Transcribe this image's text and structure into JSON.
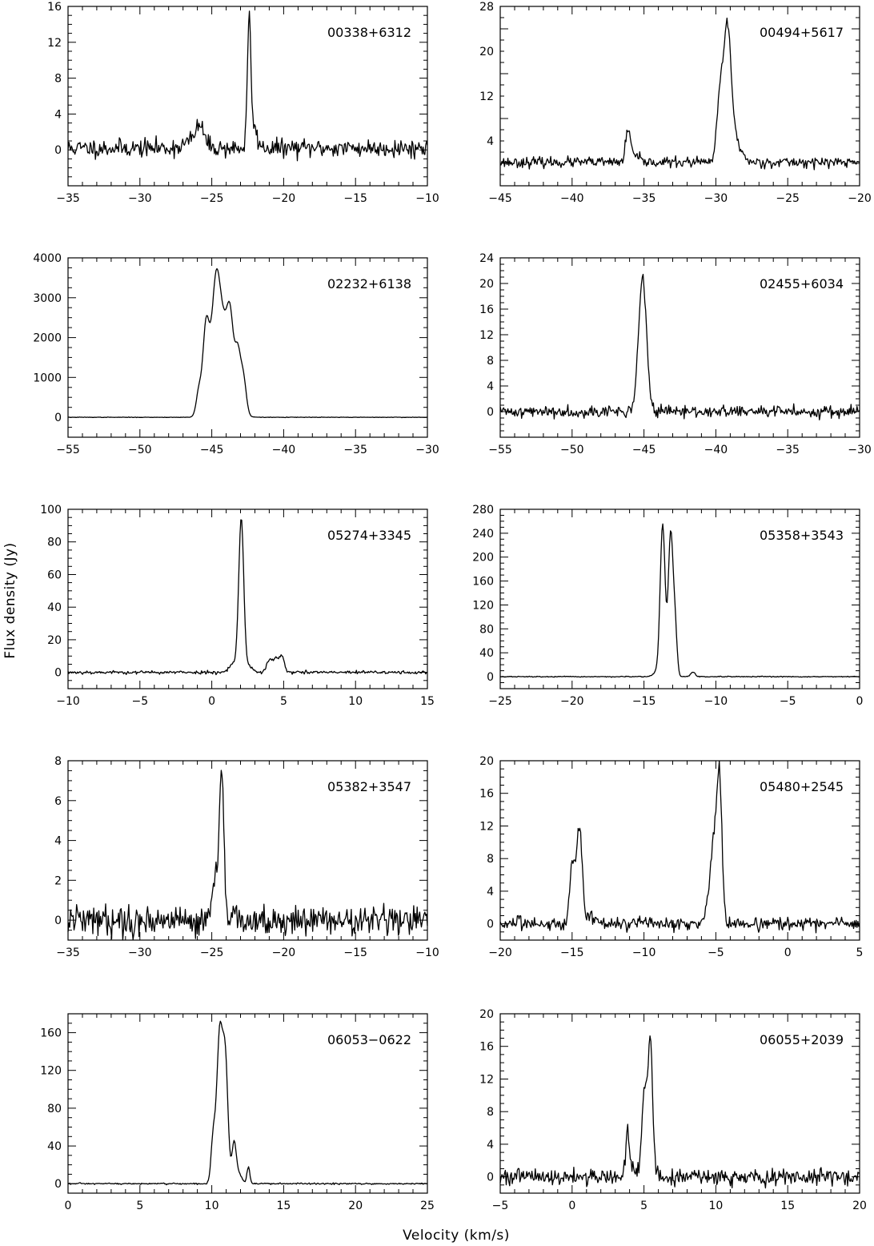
{
  "figure": {
    "xlabel": "Velocity (km/s)",
    "ylabel": "Flux density (Jy)"
  },
  "chart_data": [
    {
      "type": "line",
      "title": "00338+6312",
      "xlim": [
        -35,
        -10
      ],
      "ylim": [
        -4,
        16
      ],
      "xticks": [
        -35,
        -30,
        -25,
        -20,
        -15,
        -10
      ],
      "yticks": [
        0,
        4,
        8,
        12,
        16
      ],
      "noise": 0.5,
      "baseline": 0.2,
      "seed": 11,
      "peaks": [
        {
          "v": -22.4,
          "a": 13.6,
          "w": 0.12
        },
        {
          "v": -22.1,
          "a": 2.2,
          "w": 0.25
        },
        {
          "v": -25.8,
          "a": 1.8,
          "w": 0.25
        },
        {
          "v": -26.2,
          "a": 1.0,
          "w": 0.6
        }
      ]
    },
    {
      "type": "line",
      "title": "00494+5617",
      "xlim": [
        -45,
        -20
      ],
      "ylim": [
        -4,
        28
      ],
      "xticks": [
        -45,
        -40,
        -35,
        -30,
        -25,
        -20
      ],
      "yticks": [
        4,
        12,
        20,
        28
      ],
      "noise": 0.45,
      "baseline": 0.2,
      "seed": 23,
      "peaks": [
        {
          "v": -29.2,
          "a": 22.0,
          "w": 0.25
        },
        {
          "v": -29.7,
          "a": 11.5,
          "w": 0.22
        },
        {
          "v": -28.8,
          "a": 4.0,
          "w": 0.35
        },
        {
          "v": -28.3,
          "a": 1.2,
          "w": 0.3
        },
        {
          "v": -36.1,
          "a": 5.5,
          "w": 0.18
        },
        {
          "v": -35.6,
          "a": 1.0,
          "w": 0.25
        }
      ]
    },
    {
      "type": "line",
      "title": "02232+6138",
      "xlim": [
        -55,
        -30
      ],
      "ylim": [
        -500,
        4000
      ],
      "xticks": [
        -55,
        -50,
        -45,
        -40,
        -35,
        -30
      ],
      "yticks": [
        0,
        1000,
        2000,
        3000,
        4000
      ],
      "noise": 3,
      "baseline": 0,
      "seed": 37,
      "peaks": [
        {
          "v": -45.4,
          "a": 2100,
          "w": 0.22
        },
        {
          "v": -44.7,
          "a": 2900,
          "w": 0.3
        },
        {
          "v": -44.1,
          "a": 1300,
          "w": 0.3
        },
        {
          "v": -43.7,
          "a": 1700,
          "w": 0.22
        },
        {
          "v": -43.2,
          "a": 1400,
          "w": 0.2
        },
        {
          "v": -42.8,
          "a": 900,
          "w": 0.2
        },
        {
          "v": -45.9,
          "a": 600,
          "w": 0.18
        },
        {
          "v": -44.3,
          "a": 700,
          "w": 0.7
        }
      ]
    },
    {
      "type": "line",
      "title": "02455+6034",
      "xlim": [
        -55,
        -30
      ],
      "ylim": [
        -4,
        24
      ],
      "xticks": [
        -55,
        -50,
        -45,
        -40,
        -35,
        -30
      ],
      "yticks": [
        0,
        4,
        8,
        12,
        16,
        20,
        24
      ],
      "noise": 0.45,
      "baseline": 0,
      "seed": 41,
      "peaks": [
        {
          "v": -45.1,
          "a": 20.8,
          "w": 0.28
        }
      ]
    },
    {
      "type": "line",
      "title": "05274+3345",
      "xlim": [
        -10,
        15
      ],
      "ylim": [
        -10,
        100
      ],
      "xticks": [
        -10,
        -5,
        0,
        5,
        10,
        15
      ],
      "yticks": [
        0,
        20,
        40,
        60,
        80,
        100
      ],
      "noise": 0.5,
      "baseline": 0,
      "seed": 53,
      "peaks": [
        {
          "v": 2.05,
          "a": 91,
          "w": 0.17
        },
        {
          "v": 1.6,
          "a": 6,
          "w": 0.35
        },
        {
          "v": 2.5,
          "a": 4,
          "w": 0.3
        },
        {
          "v": 4.0,
          "a": 7,
          "w": 0.2
        },
        {
          "v": 4.5,
          "a": 8.5,
          "w": 0.22
        },
        {
          "v": 4.9,
          "a": 8.5,
          "w": 0.15
        }
      ]
    },
    {
      "type": "line",
      "title": "05358+3543",
      "xlim": [
        -25,
        0
      ],
      "ylim": [
        -20,
        280
      ],
      "xticks": [
        -25,
        -20,
        -15,
        -10,
        -5,
        0
      ],
      "yticks": [
        0,
        40,
        80,
        120,
        160,
        200,
        240,
        280
      ],
      "noise": 0.4,
      "baseline": 0,
      "seed": 67,
      "peaks": [
        {
          "v": -13.7,
          "a": 252,
          "w": 0.17
        },
        {
          "v": -13.15,
          "a": 235,
          "w": 0.16
        },
        {
          "v": -12.85,
          "a": 85,
          "w": 0.14
        },
        {
          "v": -11.6,
          "a": 8,
          "w": 0.15
        },
        {
          "v": -14.1,
          "a": 8,
          "w": 0.25
        }
      ]
    },
    {
      "type": "line",
      "title": "05382+3547",
      "xlim": [
        -35,
        -10
      ],
      "ylim": [
        -1,
        8
      ],
      "xticks": [
        -35,
        -30,
        -25,
        -20,
        -15,
        -10
      ],
      "yticks": [
        0,
        2,
        4,
        6,
        8
      ],
      "noise": 0.38,
      "baseline": 0,
      "seed": 79,
      "peaks": [
        {
          "v": -24.3,
          "a": 7.0,
          "w": 0.14
        },
        {
          "v": -24.7,
          "a": 1.8,
          "w": 0.18
        },
        {
          "v": -24.5,
          "a": 1.2,
          "w": 0.25
        }
      ]
    },
    {
      "type": "line",
      "title": "05480+2545",
      "xlim": [
        -20,
        5
      ],
      "ylim": [
        -2,
        20
      ],
      "xticks": [
        -20,
        -15,
        -10,
        -5,
        0,
        5
      ],
      "yticks": [
        0,
        4,
        8,
        12,
        16,
        20
      ],
      "noise": 0.4,
      "baseline": 0,
      "seed": 83,
      "peaks": [
        {
          "v": -14.5,
          "a": 12.0,
          "w": 0.2
        },
        {
          "v": -15.0,
          "a": 7.2,
          "w": 0.17
        },
        {
          "v": -13.7,
          "a": 1.2,
          "w": 0.25
        },
        {
          "v": -4.75,
          "a": 17.6,
          "w": 0.18
        },
        {
          "v": -5.15,
          "a": 9.0,
          "w": 0.2
        },
        {
          "v": -5.5,
          "a": 2.0,
          "w": 0.3
        }
      ]
    },
    {
      "type": "line",
      "title": "06053−0622",
      "xlim": [
        0,
        25
      ],
      "ylim": [
        -10,
        180
      ],
      "xticks": [
        0,
        5,
        10,
        15,
        20,
        25
      ],
      "yticks": [
        0,
        40,
        80,
        120,
        160
      ],
      "noise": 0.4,
      "baseline": 0,
      "seed": 97,
      "peaks": [
        {
          "v": 10.55,
          "a": 158,
          "w": 0.2
        },
        {
          "v": 10.95,
          "a": 125,
          "w": 0.18
        },
        {
          "v": 10.1,
          "a": 48,
          "w": 0.15
        },
        {
          "v": 11.55,
          "a": 43,
          "w": 0.15
        },
        {
          "v": 12.55,
          "a": 18,
          "w": 0.1
        },
        {
          "v": 11.9,
          "a": 10,
          "w": 0.2
        }
      ]
    },
    {
      "type": "line",
      "title": "06055+2039",
      "xlim": [
        -5,
        20
      ],
      "ylim": [
        -2,
        20
      ],
      "xticks": [
        -5,
        0,
        5,
        10,
        15,
        20
      ],
      "yticks": [
        0,
        4,
        8,
        12,
        16,
        20
      ],
      "noise": 0.5,
      "baseline": 0,
      "seed": 101,
      "peaks": [
        {
          "v": 5.45,
          "a": 16.5,
          "w": 0.15
        },
        {
          "v": 5.05,
          "a": 11.0,
          "w": 0.18
        },
        {
          "v": 3.85,
          "a": 6.0,
          "w": 0.12
        },
        {
          "v": 4.3,
          "a": 0.8,
          "w": 0.25
        }
      ]
    }
  ]
}
